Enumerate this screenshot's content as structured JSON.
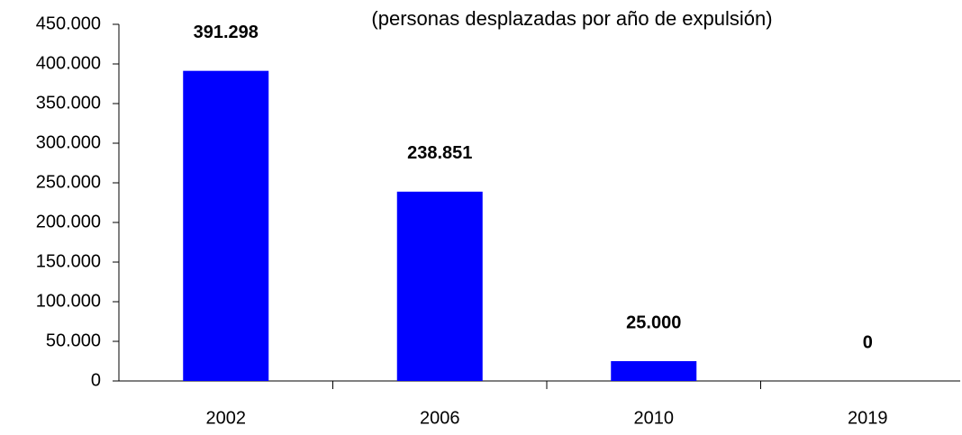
{
  "chart_data": {
    "type": "bar",
    "subtitle": "(personas desplazadas por año de expulsión)",
    "categories": [
      "2002",
      "2006",
      "2010",
      "2019"
    ],
    "values": [
      391298,
      238851,
      25000,
      0
    ],
    "value_labels": [
      "391.298",
      "238.851",
      "25.000",
      "0"
    ],
    "color": "#0000ff",
    "ylim": [
      0,
      450000
    ],
    "yticks": [
      0,
      {
        "value": 50000,
        "label": "50.000"
      },
      {
        "value": 100000,
        "label": "100.000"
      },
      {
        "value": 150000,
        "label": "150.000"
      },
      {
        "value": 200000,
        "label": "200.000"
      },
      {
        "value": 250000,
        "label": "250.000"
      },
      {
        "value": 300000,
        "label": "300.000"
      },
      {
        "value": 350000,
        "label": "350.000"
      },
      {
        "value": 400000,
        "label": "400.000"
      },
      {
        "value": 450000,
        "label": "450.000"
      }
    ],
    "grid": false
  }
}
